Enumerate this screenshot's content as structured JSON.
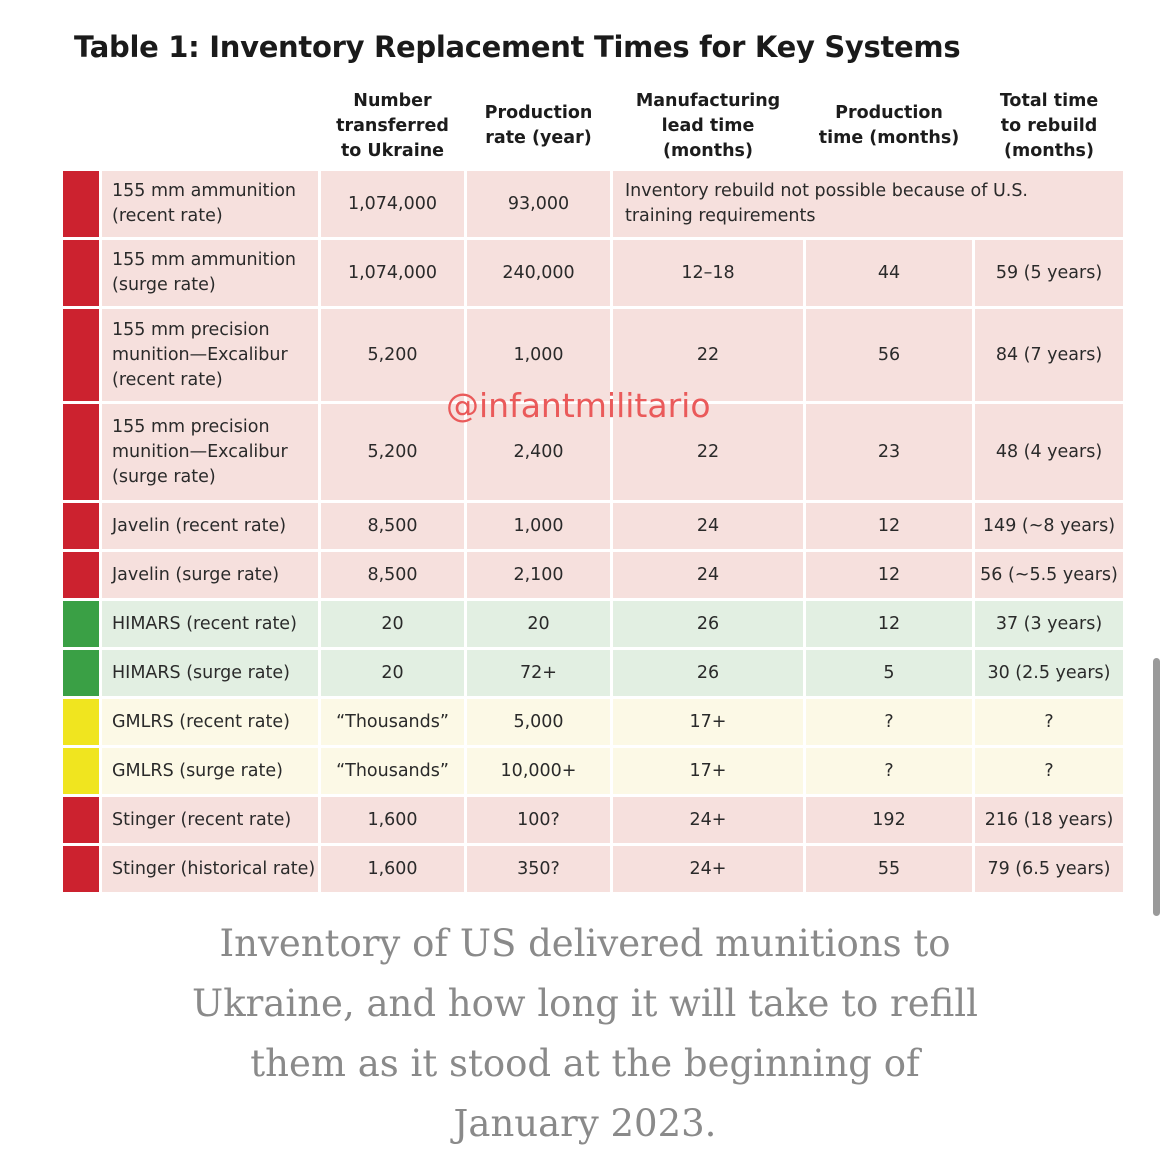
{
  "title": "Table 1: Inventory Replacement Times for Key Systems",
  "columns": [
    "Number\ntransferred\nto Ukraine",
    "Production\nrate (year)",
    "Manufacturing\nlead time\n(months)",
    "Production\ntime (months)",
    "Total time\nto rebuild\n(months)"
  ],
  "rows": [
    {
      "status": "red",
      "name": "155 mm ammunition\n(recent rate)",
      "transferred": "1,074,000",
      "rate": "93,000",
      "note": "Inventory rebuild not possible because of U.S. training requirements"
    },
    {
      "status": "red",
      "name": "155 mm ammunition\n(surge rate)",
      "transferred": "1,074,000",
      "rate": "240,000",
      "lead": "12–18",
      "prod": "44",
      "total": "59 (5 years)"
    },
    {
      "status": "red",
      "name": "155 mm precision\nmunition—Excalibur\n(recent rate)",
      "transferred": "5,200",
      "rate": "1,000",
      "lead": "22",
      "prod": "56",
      "total": "84 (7 years)"
    },
    {
      "status": "red",
      "name": "155 mm precision\nmunition—Excalibur\n(surge rate)",
      "transferred": "5,200",
      "rate": "2,400",
      "lead": "22",
      "prod": "23",
      "total": "48 (4 years)"
    },
    {
      "status": "red",
      "name": "Javelin (recent rate)",
      "transferred": "8,500",
      "rate": "1,000",
      "lead": "24",
      "prod": "12",
      "total": "149 (~8 years)"
    },
    {
      "status": "red",
      "name": "Javelin (surge rate)",
      "transferred": "8,500",
      "rate": "2,100",
      "lead": "24",
      "prod": "12",
      "total": "56 (~5.5 years)"
    },
    {
      "status": "green",
      "name": "HIMARS (recent rate)",
      "transferred": "20",
      "rate": "20",
      "lead": "26",
      "prod": "12",
      "total": "37 (3 years)"
    },
    {
      "status": "green",
      "name": "HIMARS (surge rate)",
      "transferred": "20",
      "rate": "72+",
      "lead": "26",
      "prod": "5",
      "total": "30 (2.5 years)"
    },
    {
      "status": "yellow",
      "name": "GMLRS (recent rate)",
      "transferred": "“Thousands”",
      "rate": "5,000",
      "lead": "17+",
      "prod": "?",
      "total": "?"
    },
    {
      "status": "yellow",
      "name": "GMLRS (surge rate)",
      "transferred": "“Thousands”",
      "rate": "10,000+",
      "lead": "17+",
      "prod": "?",
      "total": "?"
    },
    {
      "status": "red",
      "name": "Stinger (recent rate)",
      "transferred": "1,600",
      "rate": "100?",
      "lead": "24+",
      "prod": "192",
      "total": "216 (18 years)"
    },
    {
      "status": "red",
      "name": "Stinger (historical rate)",
      "transferred": "1,600",
      "rate": "350?",
      "lead": "24+",
      "prod": "55",
      "total": "79 (6.5 years)"
    }
  ],
  "watermark": "@infantmilitario",
  "caption": "Inventory of US delivered munitions to Ukraine, and how long it will take to refill them as it stood at the beginning of January 2023.",
  "colors": {
    "red": "#cc222f",
    "green": "#3aa045",
    "yellow": "#f0e51f"
  }
}
